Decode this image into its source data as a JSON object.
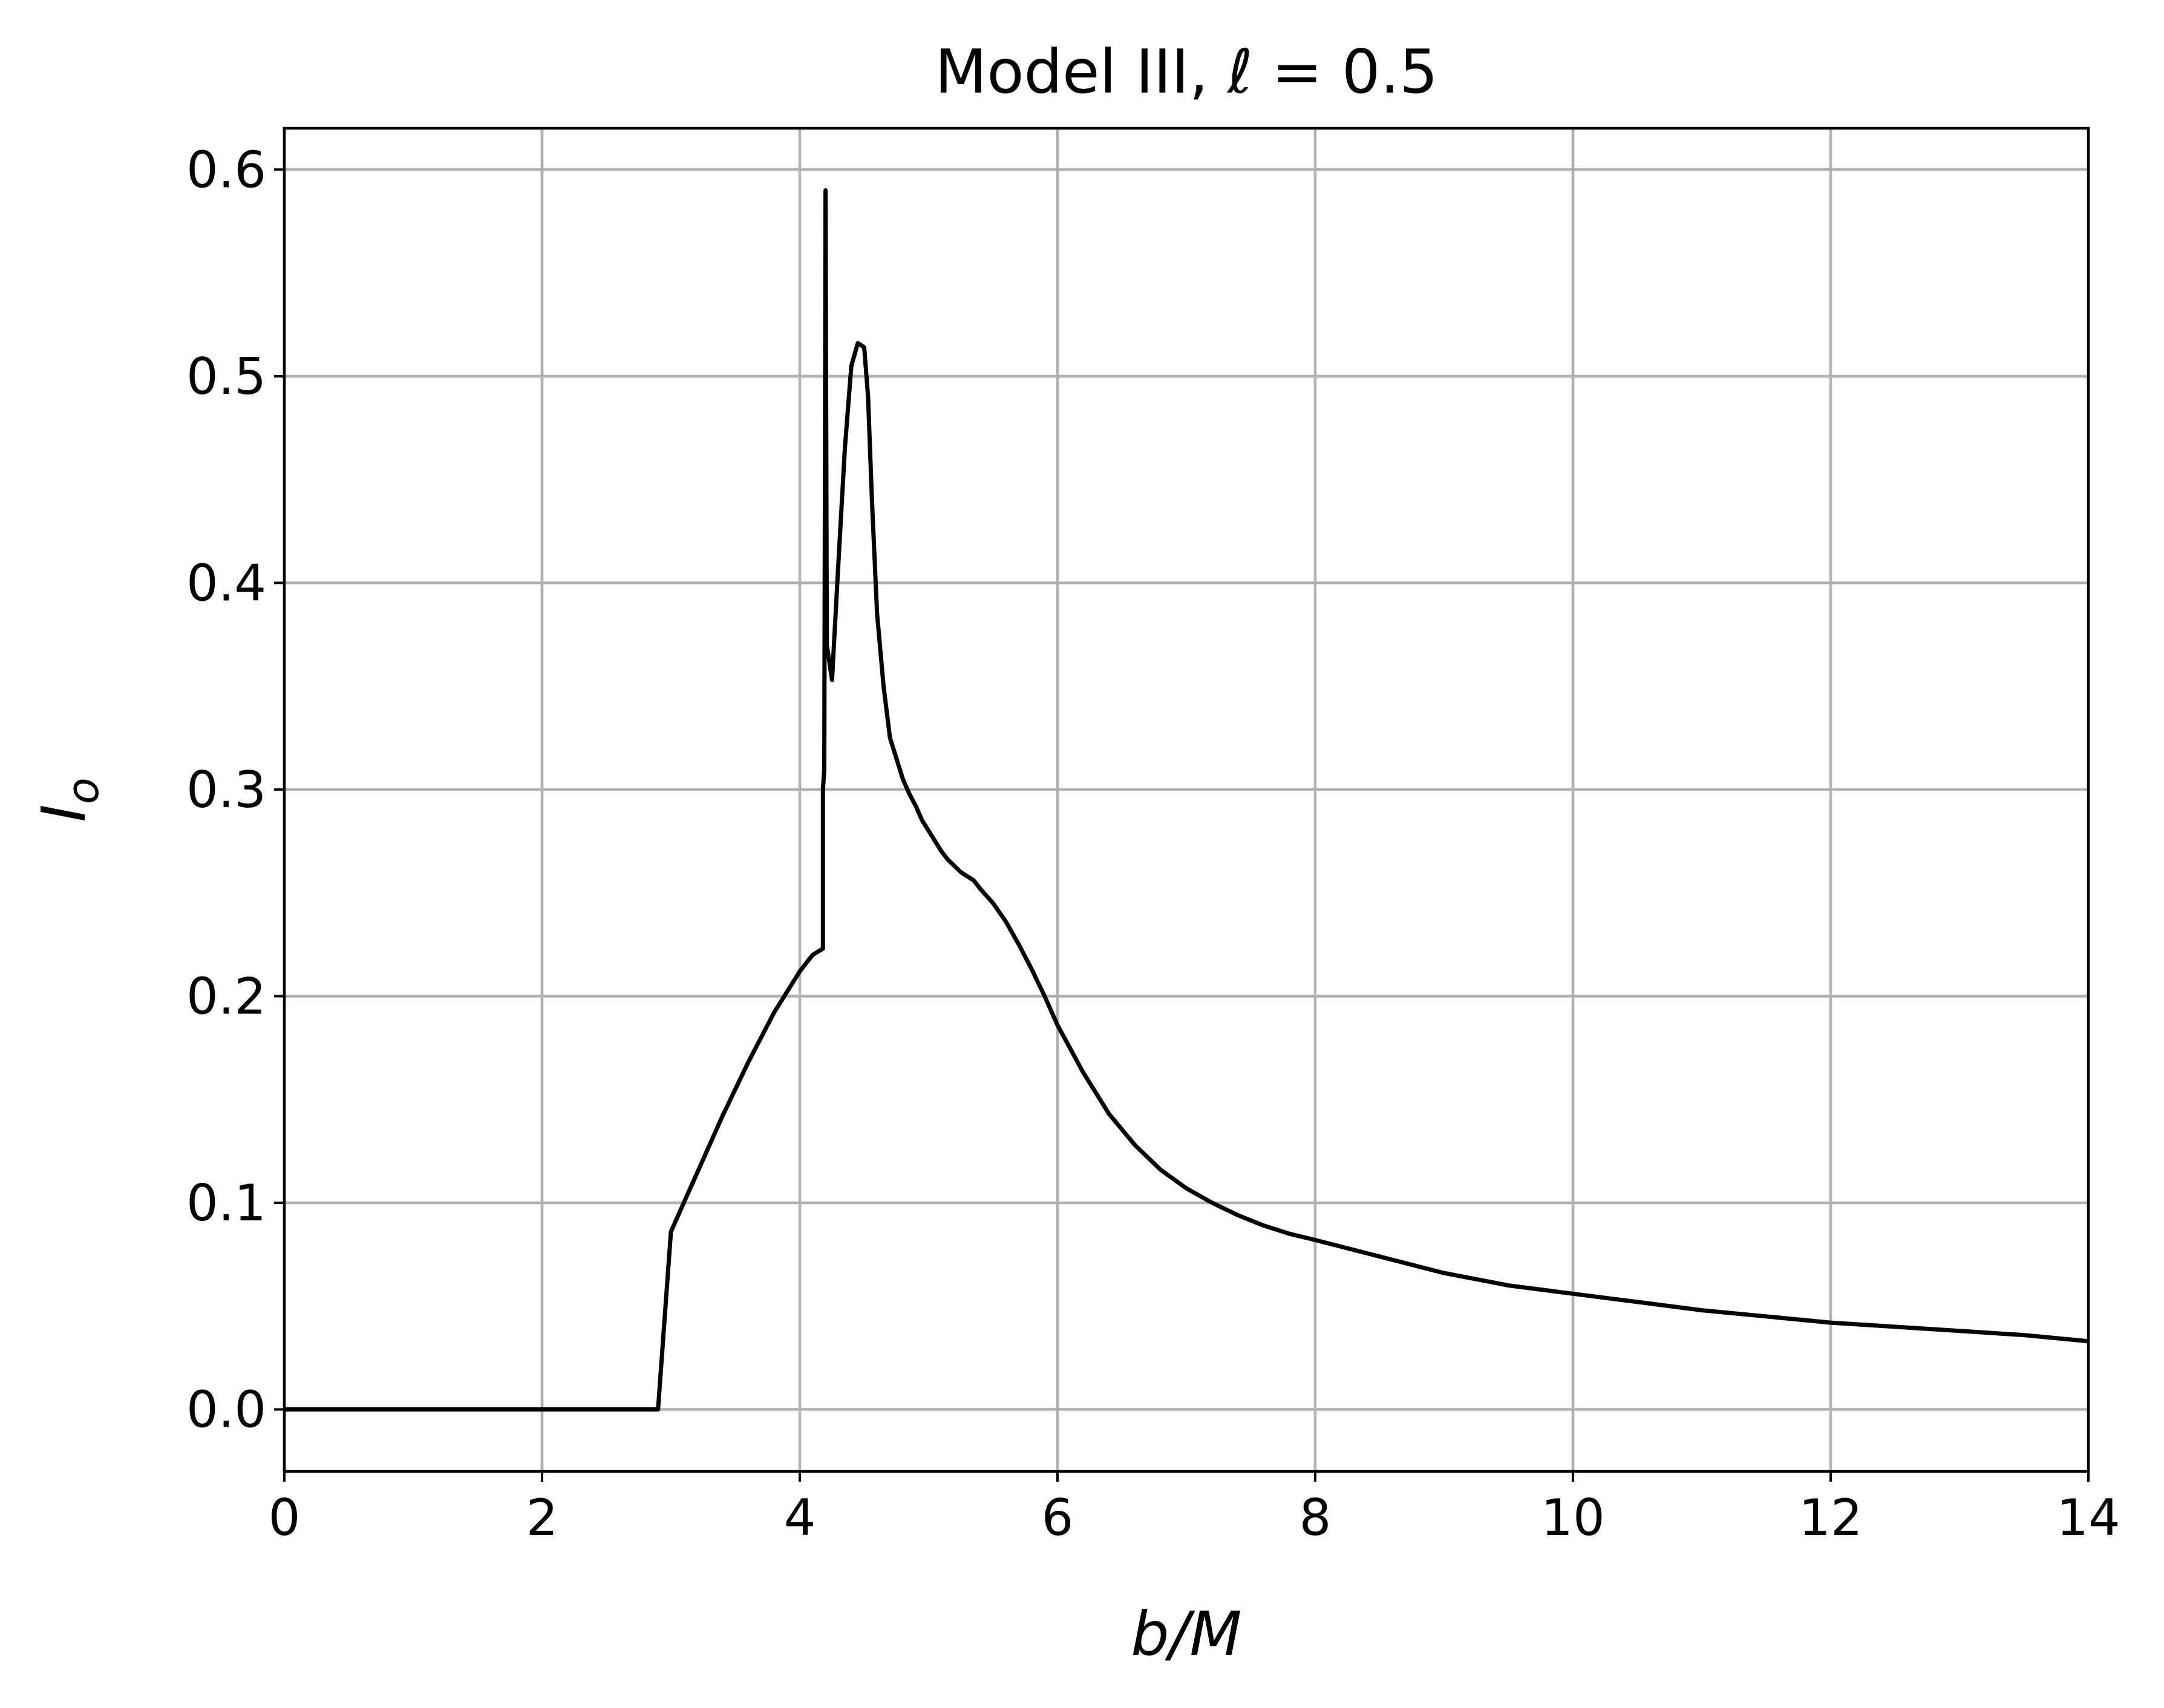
{
  "chart_data": {
    "type": "line",
    "title": "Model III, ℓ = 0.5",
    "xlabel": "b/M",
    "ylabel": "I_o",
    "xlim": [
      0,
      14
    ],
    "ylim": [
      -0.03,
      0.62
    ],
    "grid": true,
    "x_ticks": [
      0,
      2,
      4,
      6,
      8,
      10,
      12,
      14
    ],
    "x_tick_labels": [
      "0",
      "2",
      "4",
      "6",
      "8",
      "10",
      "12",
      "14"
    ],
    "y_ticks": [
      0.0,
      0.1,
      0.2,
      0.3,
      0.4,
      0.5,
      0.6
    ],
    "y_tick_labels": [
      "0.0",
      "0.1",
      "0.2",
      "0.3",
      "0.4",
      "0.5",
      "0.6"
    ],
    "series": [
      {
        "color": "#000000",
        "x": [
          0,
          2.9,
          3.0,
          3.2,
          3.4,
          3.6,
          3.8,
          4.0,
          4.1,
          4.18,
          4.18,
          4.19,
          4.2,
          4.21,
          4.25,
          4.3,
          4.35,
          4.4,
          4.45,
          4.5,
          4.53,
          4.56,
          4.6,
          4.65,
          4.7,
          4.75,
          4.8,
          4.85,
          4.9,
          4.95,
          5.0,
          5.05,
          5.1,
          5.15,
          5.2,
          5.25,
          5.3,
          5.35,
          5.4,
          5.5,
          5.6,
          5.7,
          5.8,
          5.9,
          6.0,
          6.2,
          6.4,
          6.6,
          6.8,
          7.0,
          7.2,
          7.4,
          7.6,
          7.8,
          8.0,
          8.5,
          9.0,
          9.5,
          10.0,
          10.5,
          11.0,
          11.5,
          12.0,
          12.5,
          13.0,
          13.5,
          14.0
        ],
        "y": [
          0.0,
          0.0,
          0.086,
          0.114,
          0.142,
          0.168,
          0.192,
          0.212,
          0.22,
          0.223,
          0.3,
          0.31,
          0.59,
          0.37,
          0.353,
          0.41,
          0.465,
          0.505,
          0.516,
          0.514,
          0.49,
          0.44,
          0.385,
          0.35,
          0.325,
          0.315,
          0.305,
          0.298,
          0.292,
          0.285,
          0.28,
          0.275,
          0.27,
          0.266,
          0.263,
          0.26,
          0.258,
          0.256,
          0.252,
          0.245,
          0.236,
          0.225,
          0.213,
          0.2,
          0.186,
          0.163,
          0.143,
          0.128,
          0.116,
          0.107,
          0.1,
          0.094,
          0.089,
          0.085,
          0.082,
          0.074,
          0.066,
          0.06,
          0.056,
          0.052,
          0.048,
          0.045,
          0.042,
          0.04,
          0.038,
          0.036,
          0.033
        ]
      }
    ]
  }
}
